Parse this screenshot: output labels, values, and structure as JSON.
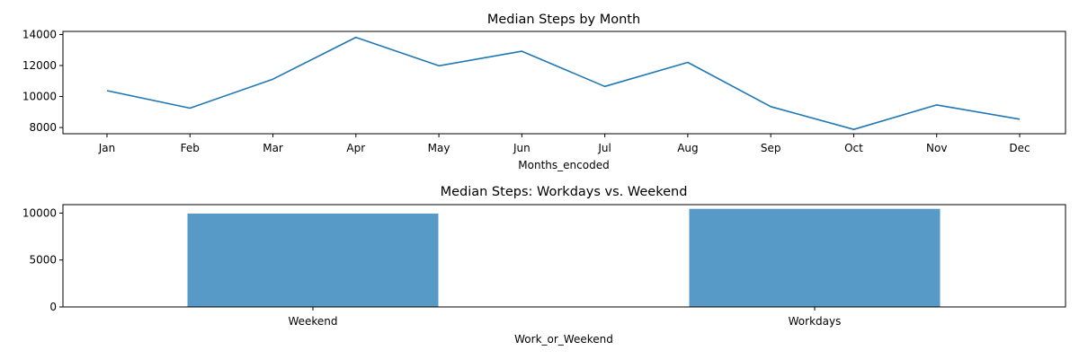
{
  "chart_data": [
    {
      "type": "line",
      "title": "Median Steps by Month",
      "xlabel": "Months_encoded",
      "ylabel": "",
      "categories": [
        "Jan",
        "Feb",
        "Mar",
        "Apr",
        "May",
        "Jun",
        "Jul",
        "Aug",
        "Sep",
        "Oct",
        "Nov",
        "Dec"
      ],
      "series": [
        {
          "values": [
            10380,
            9250,
            11120,
            13820,
            11980,
            12920,
            10650,
            12200,
            9350,
            7880,
            9460,
            8540
          ]
        }
      ],
      "ylim": [
        7600,
        14200
      ],
      "yticks": [
        8000,
        10000,
        12000,
        14000
      ],
      "color": "#1f77b4",
      "grid": false
    },
    {
      "type": "bar",
      "title": "Median Steps: Workdays vs. Weekend",
      "xlabel": "Work_or_Weekend",
      "ylabel": "",
      "categories": [
        "Weekend",
        "Workdays"
      ],
      "values": [
        9950,
        10450
      ],
      "ylim": [
        0,
        10900
      ],
      "yticks": [
        0,
        5000,
        10000
      ],
      "color": "#5799c7",
      "grid": false
    }
  ]
}
